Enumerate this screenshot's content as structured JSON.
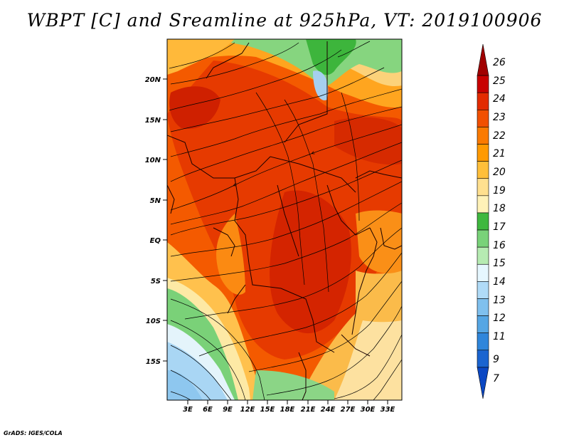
{
  "title": "WBPT [C] and Sreamline at 925hPa, VT: 2019100906",
  "credit": "GrADS: IGES/COLA",
  "lat_labels": [
    "20N",
    "15N",
    "10N",
    "5N",
    "EQ",
    "5S",
    "10S",
    "15S"
  ],
  "lon_labels": [
    "3E",
    "6E",
    "9E",
    "12E",
    "15E",
    "18E",
    "21E",
    "24E",
    "27E",
    "30E",
    "33E"
  ],
  "colorbar": {
    "labels": [
      "26",
      "25",
      "24",
      "23",
      "22",
      "21",
      "20",
      "19",
      "18",
      "17",
      "16",
      "15",
      "14",
      "13",
      "12",
      "11",
      "9",
      "7"
    ],
    "colors": [
      "#a00000",
      "#c80000",
      "#e32b00",
      "#f15000",
      "#fa7a00",
      "#ff9a00",
      "#ffbf3a",
      "#ffe08f",
      "#fff2b8",
      "#3fb83f",
      "#79d279",
      "#b6ebb2",
      "#e6f7ff",
      "#b0dbf7",
      "#7fc0ee",
      "#55a6e4",
      "#2f86db",
      "#1a64d0",
      "#0b47c3"
    ]
  }
}
